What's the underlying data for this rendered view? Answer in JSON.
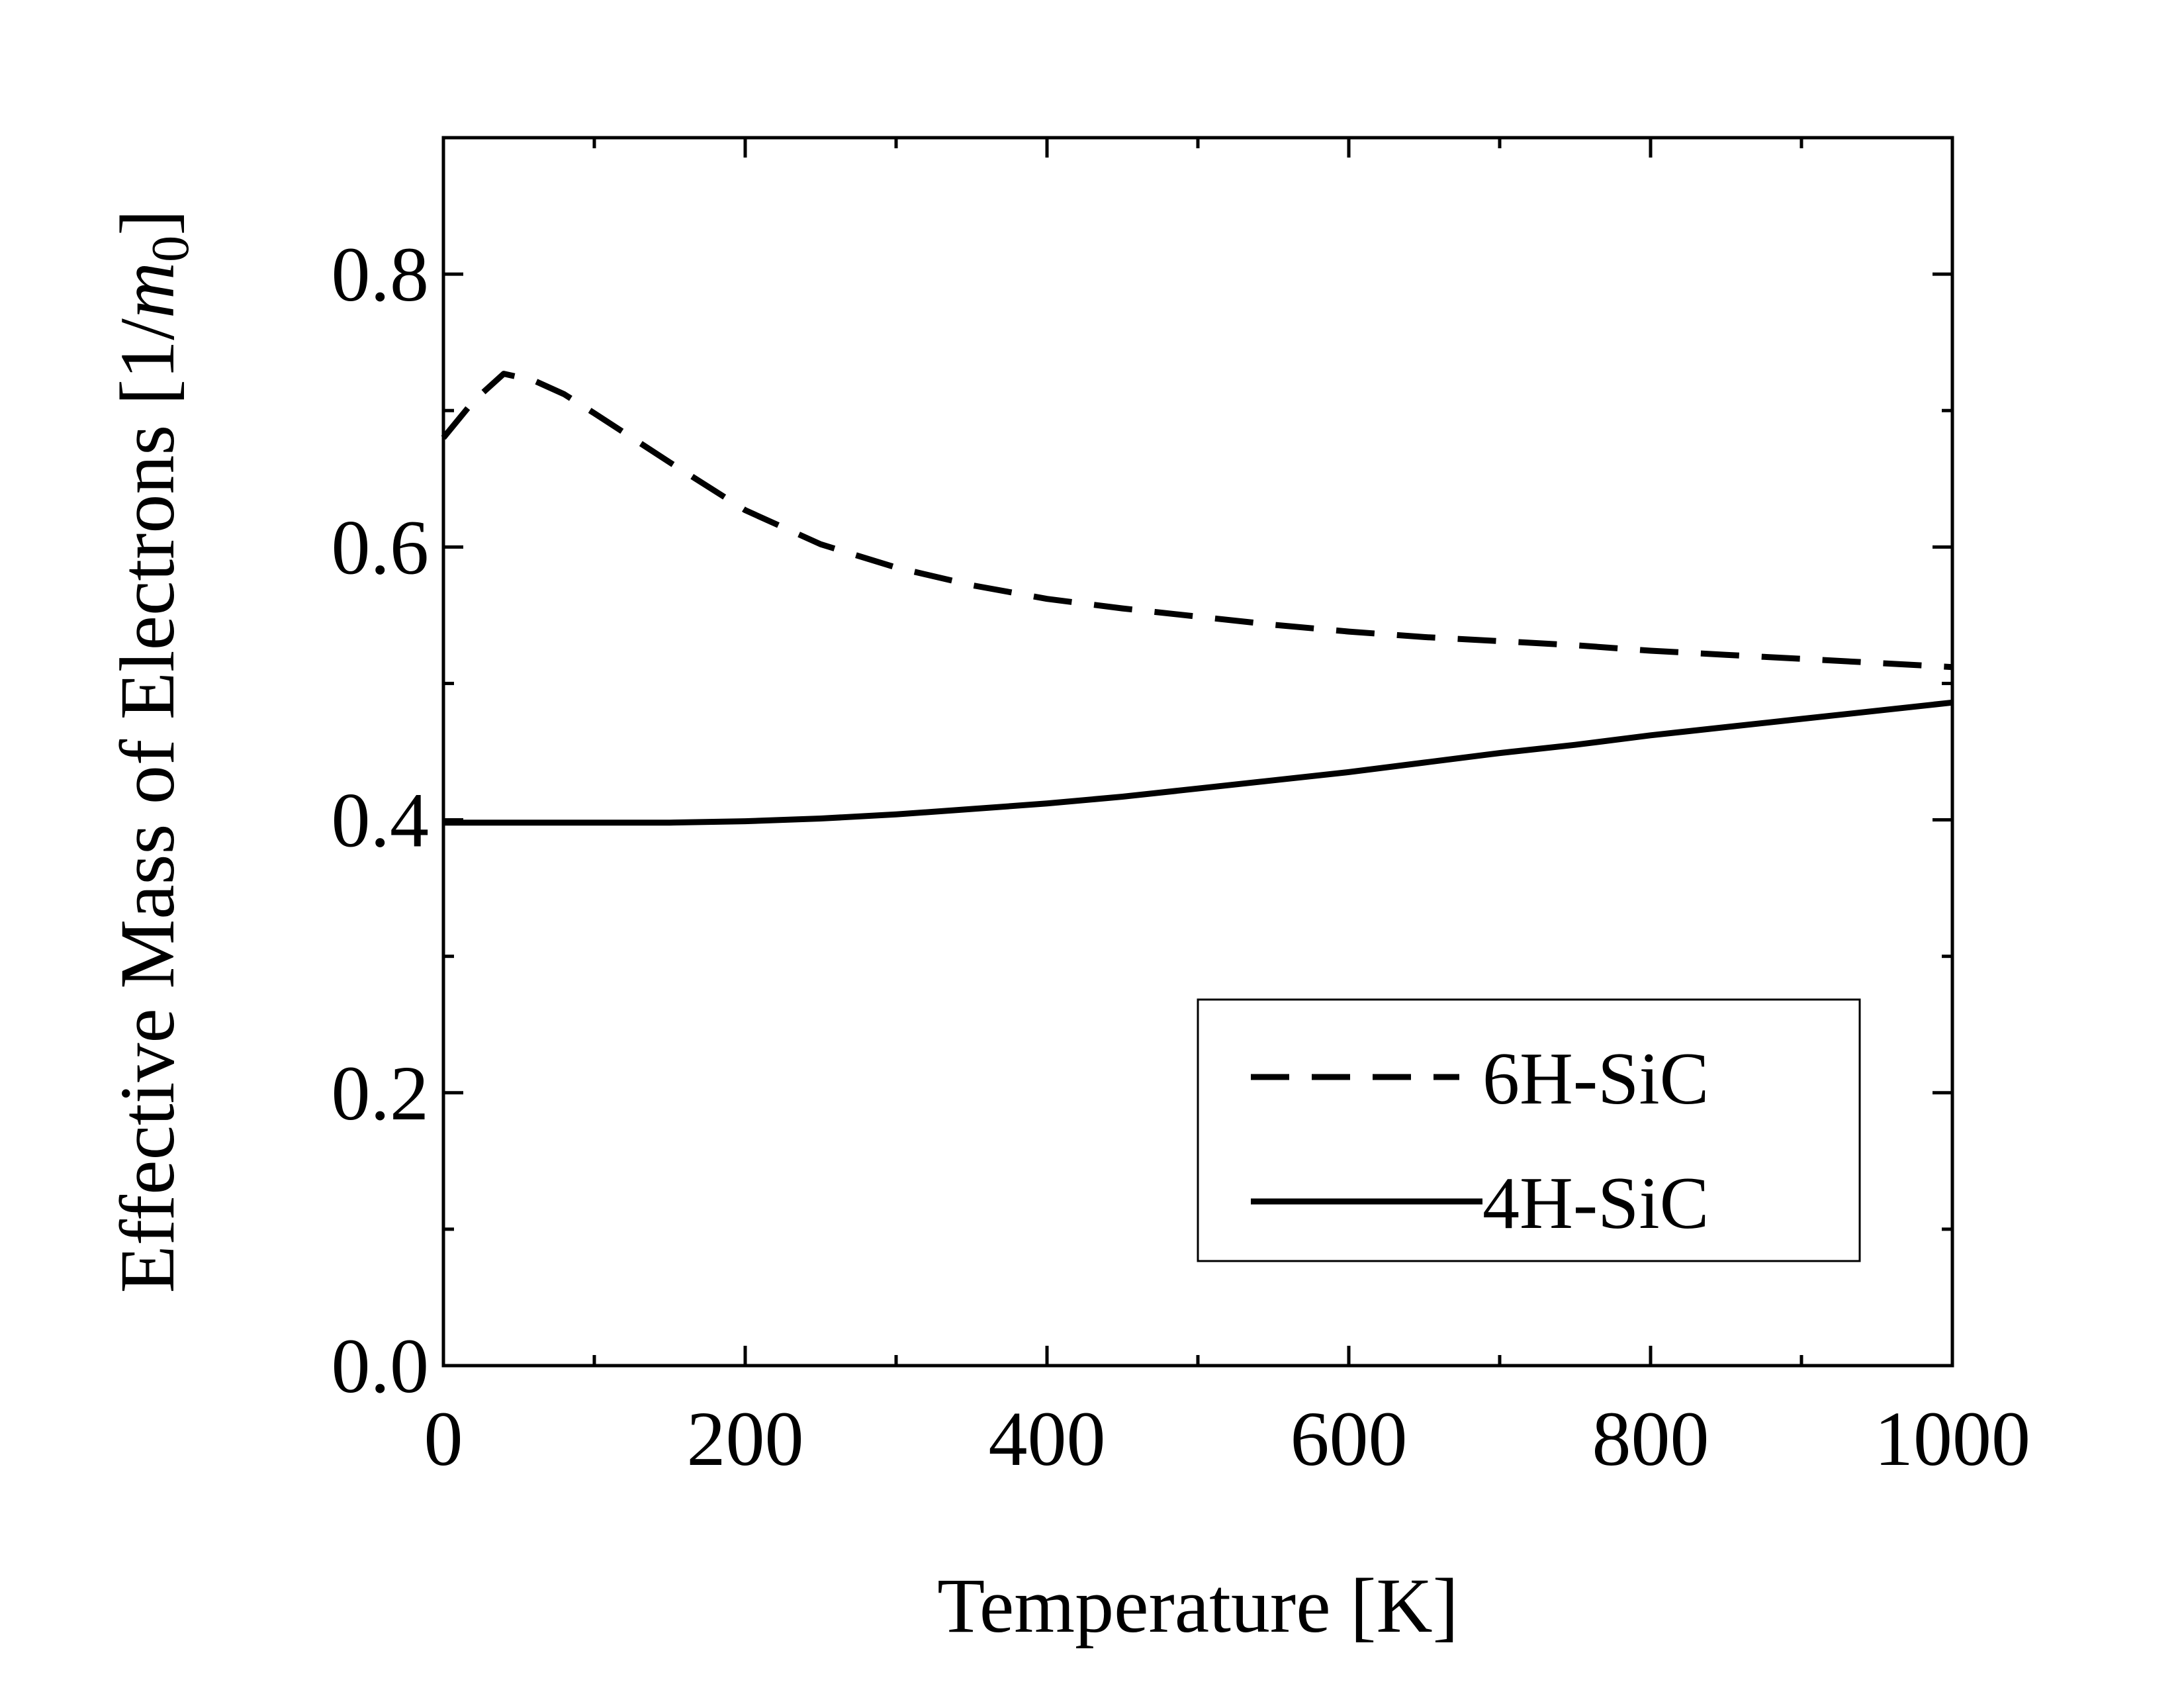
{
  "chart_data": {
    "type": "line",
    "title": "",
    "xlabel": "Temperature [K]",
    "ylabel": {
      "prefix": "Effective Mass of Electrons [1/",
      "var": "m",
      "sub": "0",
      "suffix": "]"
    },
    "xlim": [
      0,
      1000
    ],
    "ylim": [
      0,
      0.9
    ],
    "x_major_ticks": [
      0,
      200,
      400,
      600,
      800,
      1000
    ],
    "x_minor_ticks": [
      100,
      300,
      500,
      700,
      900
    ],
    "x_tick_labels": [
      "0",
      "200",
      "400",
      "600",
      "800",
      "1000"
    ],
    "y_major_ticks": [
      0.0,
      0.2,
      0.4,
      0.6,
      0.8
    ],
    "y_minor_ticks": [
      0.1,
      0.3,
      0.5,
      0.7
    ],
    "y_tick_labels": [
      "0.0",
      "0.2",
      "0.4",
      "0.6",
      "0.8"
    ],
    "grid": false,
    "legend_position": "bottom-right",
    "series": [
      {
        "name": "6H-SiC",
        "style": "dashed",
        "x": [
          0,
          20,
          40,
          60,
          80,
          100,
          150,
          200,
          250,
          300,
          350,
          400,
          450,
          500,
          550,
          600,
          650,
          700,
          750,
          800,
          850,
          900,
          950,
          1000
        ],
        "y": [
          0.68,
          0.707,
          0.727,
          0.722,
          0.712,
          0.698,
          0.662,
          0.627,
          0.602,
          0.585,
          0.572,
          0.562,
          0.555,
          0.549,
          0.543,
          0.538,
          0.534,
          0.531,
          0.528,
          0.524,
          0.521,
          0.518,
          0.515,
          0.512
        ]
      },
      {
        "name": "4H-SiC",
        "style": "solid",
        "x": [
          0,
          50,
          100,
          150,
          200,
          250,
          300,
          350,
          400,
          450,
          500,
          550,
          600,
          650,
          700,
          750,
          800,
          850,
          900,
          950,
          1000
        ],
        "y": [
          0.398,
          0.398,
          0.398,
          0.398,
          0.399,
          0.401,
          0.404,
          0.408,
          0.412,
          0.417,
          0.423,
          0.429,
          0.435,
          0.442,
          0.449,
          0.455,
          0.462,
          0.468,
          0.474,
          0.48,
          0.486
        ]
      }
    ]
  }
}
